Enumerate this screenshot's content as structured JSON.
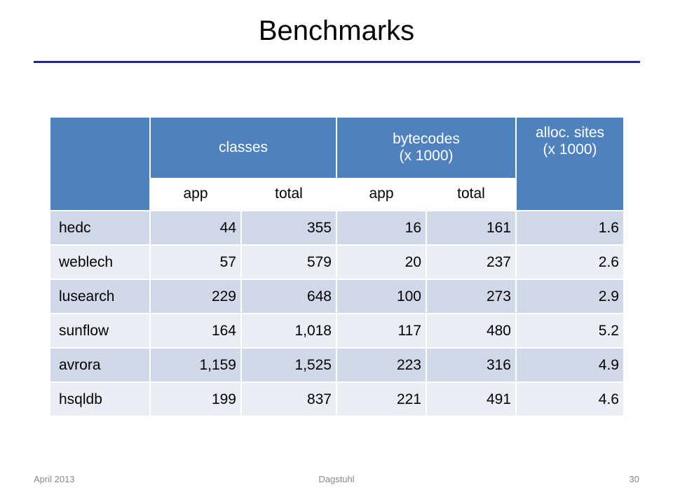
{
  "slide": {
    "title": "Benchmarks"
  },
  "table": {
    "headers": {
      "classes": "classes",
      "bytecodes_line1": "bytecodes",
      "bytecodes_line2": "(x 1000)",
      "alloc_line1": "alloc. sites",
      "alloc_line2": "(x 1000)",
      "sub": [
        "app",
        "total",
        "app",
        "total"
      ]
    },
    "rows": [
      {
        "name": "hedc",
        "classes_app": "44",
        "classes_total": "355",
        "bytecodes_app": "16",
        "bytecodes_total": "161",
        "alloc_sites": "1.6"
      },
      {
        "name": "weblech",
        "classes_app": "57",
        "classes_total": "579",
        "bytecodes_app": "20",
        "bytecodes_total": "237",
        "alloc_sites": "2.6"
      },
      {
        "name": "lusearch",
        "classes_app": "229",
        "classes_total": "648",
        "bytecodes_app": "100",
        "bytecodes_total": "273",
        "alloc_sites": "2.9"
      },
      {
        "name": "sunflow",
        "classes_app": "164",
        "classes_total": "1,018",
        "bytecodes_app": "117",
        "bytecodes_total": "480",
        "alloc_sites": "5.2"
      },
      {
        "name": "avrora",
        "classes_app": "1,159",
        "classes_total": "1,525",
        "bytecodes_app": "223",
        "bytecodes_total": "316",
        "alloc_sites": "4.9"
      },
      {
        "name": "hsqldb",
        "classes_app": "199",
        "classes_total": "837",
        "bytecodes_app": "221",
        "bytecodes_total": "491",
        "alloc_sites": "4.6"
      }
    ]
  },
  "footer": {
    "date": "April 2013",
    "venue": "Dagstuhl",
    "page": "30"
  },
  "colors": {
    "header_blue": "#4f81bd",
    "row_dark": "#d0d8e8",
    "row_light": "#e9edf4",
    "title_rule": "#1f1fa8",
    "footer_text": "#8a8a8a"
  }
}
